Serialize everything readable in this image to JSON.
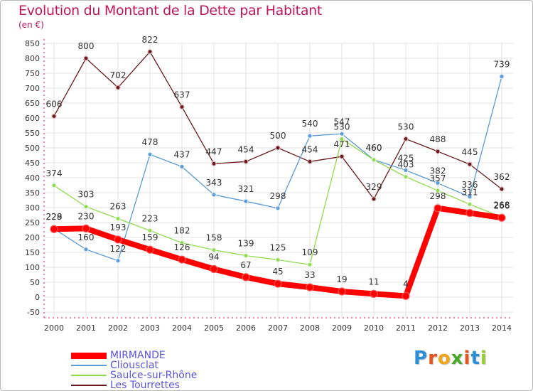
{
  "chart_data": {
    "type": "line",
    "title": "Evolution du Montant de la Dette par Habitant",
    "unit_label": "(en €)",
    "xlabel": "",
    "ylabel": "",
    "x": [
      "2000",
      "2001",
      "2002",
      "2003",
      "2004",
      "2005",
      "2006",
      "2007",
      "2008",
      "2009",
      "2010",
      "2011",
      "2012",
      "2013",
      "2014"
    ],
    "ylim": [
      -50,
      850
    ],
    "yticks": [
      -50,
      0,
      50,
      100,
      150,
      200,
      250,
      300,
      350,
      400,
      450,
      500,
      550,
      600,
      650,
      700,
      750,
      800,
      850
    ],
    "grid": true,
    "legend_position": "bottom-left",
    "series": [
      {
        "name": "Les Tourrettes",
        "color": "#6b1a1f",
        "values": [
          606,
          800,
          702,
          822,
          637,
          447,
          454,
          500,
          454,
          471,
          329,
          530,
          488,
          445,
          362
        ],
        "labels": [
          "606",
          "800",
          "702",
          "822",
          "637",
          "447",
          "454",
          "500",
          "454",
          "471",
          "329",
          "530",
          "488",
          "445",
          "362"
        ]
      },
      {
        "name": "Cliousclat",
        "color": "#5b9bd5",
        "values": [
          229,
          160,
          122,
          478,
          437,
          343,
          321,
          298,
          540,
          547,
          460,
          425,
          382,
          336,
          739
        ],
        "labels": [
          "229",
          "160",
          "122",
          "478",
          "437",
          "343",
          "321",
          "298",
          "540",
          "547",
          "460",
          "425",
          "382",
          "336",
          "739"
        ]
      },
      {
        "name": "Saulce-sur-Rhône",
        "color": "#8fdc4f",
        "values": [
          374,
          303,
          263,
          223,
          182,
          158,
          139,
          125,
          109,
          530,
          460,
          403,
          357,
          311,
          268
        ],
        "labels": [
          "374",
          "303",
          "263",
          "223",
          "182",
          "158",
          "139",
          "125",
          "109",
          "530",
          "460",
          "403",
          "357",
          "311",
          "268"
        ]
      },
      {
        "name": "MIRMANDE",
        "color": "#ff0000",
        "values": [
          228,
          230,
          193,
          159,
          126,
          94,
          67,
          45,
          33,
          19,
          11,
          4,
          298,
          282,
          266
        ],
        "labels": [
          "228",
          "230",
          "193",
          "159",
          "126",
          "94",
          "67",
          "45",
          "33",
          "19",
          "11",
          "4",
          "298",
          "",
          "266"
        ]
      }
    ],
    "legend": [
      "MIRMANDE",
      "Cliousclat",
      "Saulce-sur-Rhône",
      "Les Tourrettes"
    ],
    "legend_colors": {
      "MIRMANDE": "#5b55e0",
      "Cliousclat": "#5b55e0",
      "Saulce-sur-Rhône": "#5b55e0",
      "Les Tourrettes": "#5b55e0"
    }
  },
  "logo": {
    "letters": [
      "P",
      "r",
      "o",
      "x",
      "i",
      "t",
      "i"
    ],
    "colors": [
      "#2c8fd6",
      "#e8541f",
      "#f2a516",
      "#4aa829",
      "#e8541f",
      "#2c8fd6",
      "#9acd32"
    ]
  }
}
